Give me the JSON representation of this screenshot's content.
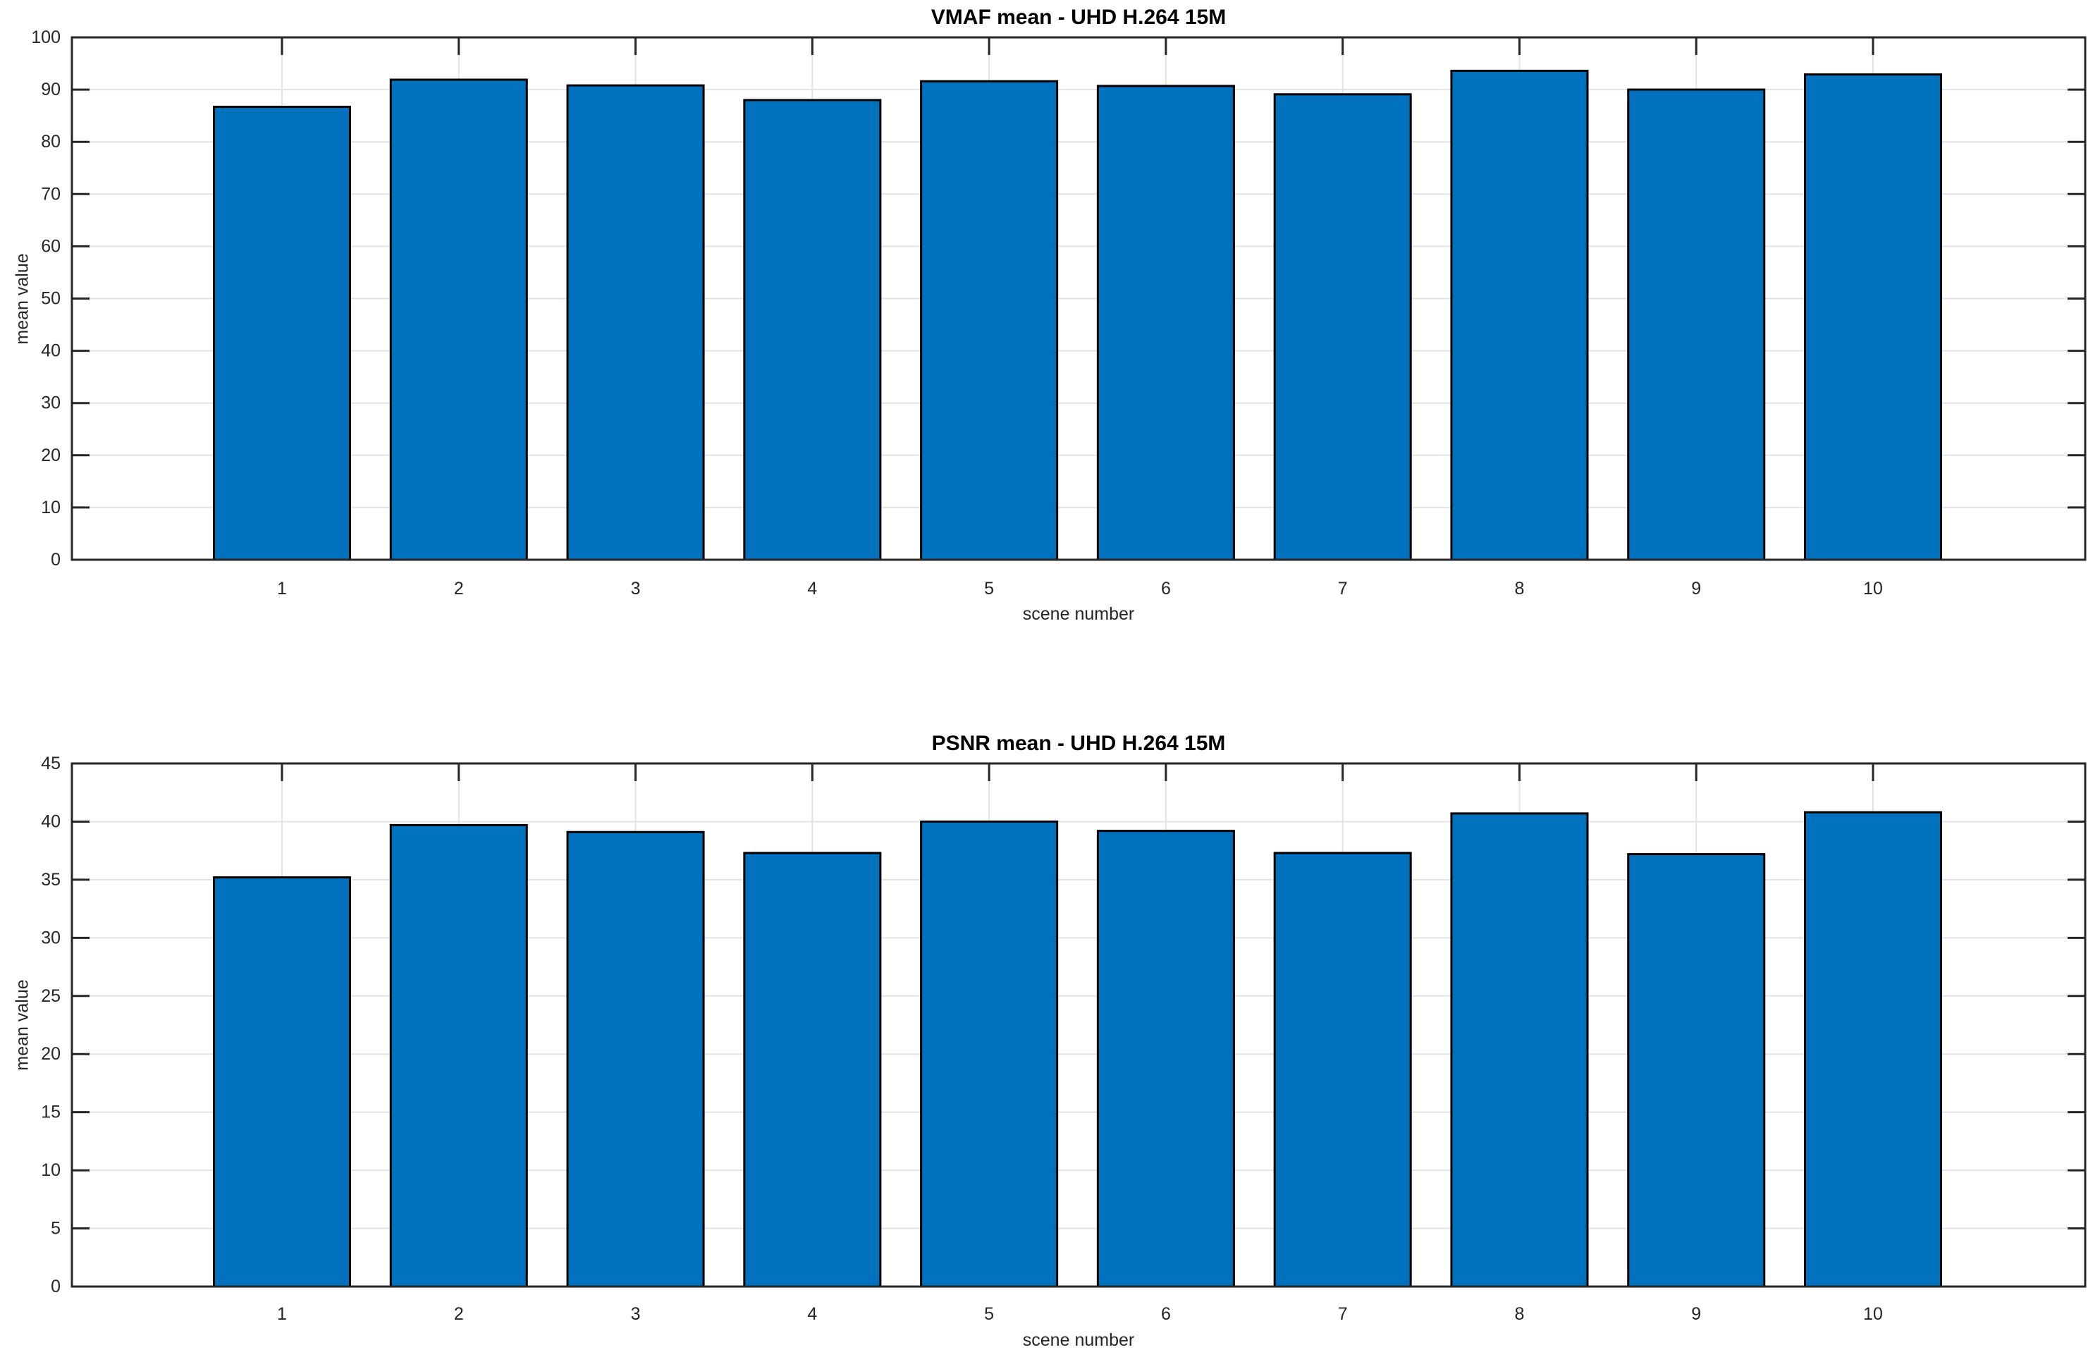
{
  "page": {
    "background_color": "#ffffff",
    "description": "Two stacked MATLAB-style bar charts comparing quality metrics per scene"
  },
  "chart_data": [
    {
      "type": "bar",
      "title": "VMAF mean - UHD H.264 15M",
      "xlabel": "scene number",
      "ylabel": "mean value",
      "categories": [
        "1",
        "2",
        "3",
        "4",
        "5",
        "6",
        "7",
        "8",
        "9",
        "10"
      ],
      "values": [
        86.7,
        91.9,
        90.8,
        88.0,
        91.6,
        90.7,
        89.1,
        93.6,
        90.0,
        92.9
      ],
      "ylim": [
        0,
        100
      ],
      "yticks": [
        0,
        10,
        20,
        30,
        40,
        50,
        60,
        70,
        80,
        90,
        100
      ],
      "grid": true,
      "legend": "none",
      "bar_fill_color": "#0072bd",
      "bar_edge_color": "#000000",
      "axis_color": "#262626",
      "grid_color": "#e3e3e3"
    },
    {
      "type": "bar",
      "title": "PSNR mean - UHD H.264 15M",
      "xlabel": "scene number",
      "ylabel": "mean value",
      "categories": [
        "1",
        "2",
        "3",
        "4",
        "5",
        "6",
        "7",
        "8",
        "9",
        "10"
      ],
      "values": [
        35.2,
        39.7,
        39.1,
        37.3,
        40.0,
        39.2,
        37.3,
        40.7,
        37.2,
        40.8
      ],
      "ylim": [
        0,
        45
      ],
      "yticks": [
        0,
        5,
        10,
        15,
        20,
        25,
        30,
        35,
        40,
        45
      ],
      "grid": true,
      "legend": "none",
      "bar_fill_color": "#0072bd",
      "bar_edge_color": "#000000",
      "axis_color": "#262626",
      "grid_color": "#e3e3e3"
    }
  ]
}
